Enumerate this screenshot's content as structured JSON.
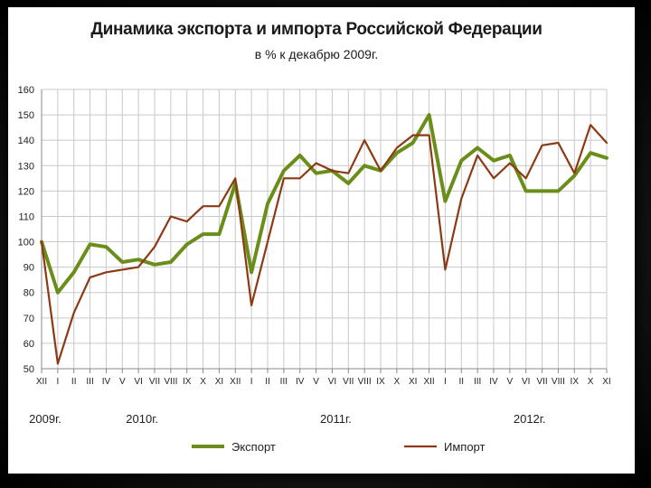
{
  "colors": {
    "export": "#6b8e1a",
    "import": "#8b3a14",
    "grid": "#c8c8c8",
    "axis": "#888888"
  },
  "chart_data": {
    "type": "line",
    "title": "Динамика экспорта и импорта Российской Федерации",
    "subtitle": "в % к декабрю 2009г.",
    "ylim": [
      50,
      160
    ],
    "yticks": [
      50,
      60,
      70,
      80,
      90,
      100,
      110,
      120,
      130,
      140,
      150,
      160
    ],
    "grid": true,
    "legend_position": "bottom",
    "x": [
      "XII",
      "I",
      "II",
      "III",
      "IV",
      "V",
      "VI",
      "VII",
      "VIII",
      "IX",
      "X",
      "XI",
      "XII",
      "I",
      "II",
      "III",
      "IV",
      "V",
      "VI",
      "VII",
      "VIII",
      "IX",
      "X",
      "XI",
      "XII",
      "I",
      "II",
      "III",
      "IV",
      "V",
      "VI",
      "VII",
      "VIII",
      "IX",
      "X",
      "XI"
    ],
    "year_labels": [
      {
        "label": "2009г.",
        "index": 0
      },
      {
        "label": "2010г.",
        "index": 6
      },
      {
        "label": "2011г.",
        "index": 18
      },
      {
        "label": "2012г.",
        "index": 30
      }
    ],
    "series": [
      {
        "name": "Экспорт",
        "values": [
          100,
          80,
          88,
          99,
          98,
          92,
          93,
          91,
          92,
          99,
          103,
          103,
          123,
          88,
          115,
          128,
          134,
          127,
          128,
          123,
          130,
          128,
          135,
          139,
          150,
          116,
          132,
          137,
          132,
          134,
          120,
          120,
          120,
          126,
          135,
          133
        ]
      },
      {
        "name": "Импорт",
        "values": [
          100,
          52,
          72,
          86,
          88,
          89,
          90,
          98,
          110,
          108,
          114,
          114,
          125,
          75,
          100,
          125,
          125,
          131,
          128,
          127,
          140,
          128,
          137,
          142,
          142,
          89,
          117,
          134,
          125,
          131,
          125,
          138,
          139,
          127,
          146,
          139
        ]
      }
    ]
  }
}
